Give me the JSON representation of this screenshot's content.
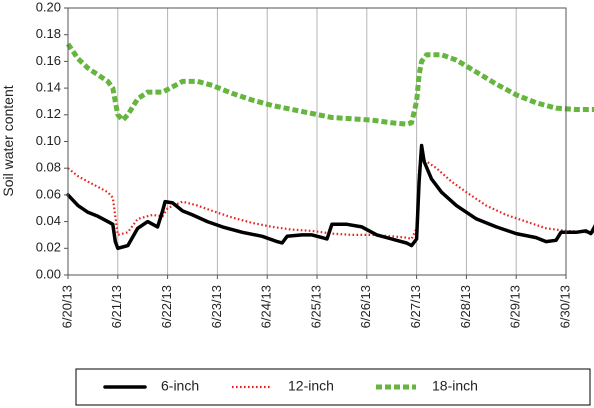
{
  "chart_data": {
    "type": "line",
    "title": "",
    "xlabel": "",
    "ylabel": "Soil water content",
    "ylim": [
      0.0,
      0.2
    ],
    "xlim": [
      "6/20/13",
      "6/30/13"
    ],
    "yticks": [
      "0.00",
      "0.02",
      "0.04",
      "0.06",
      "0.08",
      "0.10",
      "0.12",
      "0.14",
      "0.16",
      "0.18",
      "0.20"
    ],
    "xticks": [
      "6/20/13",
      "6/21/13",
      "6/22/13",
      "6/23/13",
      "6/24/13",
      "6/25/13",
      "6/26/13",
      "6/27/13",
      "6/28/13",
      "6/29/13",
      "6/30/13"
    ],
    "grid": "vertical",
    "legend_position": "bottom",
    "series": [
      {
        "name": "6-inch",
        "color": "#000000",
        "style": "solid",
        "points": [
          [
            "6/20/13 00:00",
            0.06
          ],
          [
            "6/20/13 04:48",
            0.052
          ],
          [
            "6/20/13 09:36",
            0.047
          ],
          [
            "6/20/13 14:24",
            0.044
          ],
          [
            "6/20/13 19:12",
            0.04
          ],
          [
            "6/20/13 21:36",
            0.038
          ],
          [
            "6/20/13 22:48",
            0.025
          ],
          [
            "6/21/13 00:00",
            0.02
          ],
          [
            "6/21/13 04:48",
            0.022
          ],
          [
            "6/21/13 09:36",
            0.035
          ],
          [
            "6/21/13 14:24",
            0.04
          ],
          [
            "6/21/13 19:12",
            0.036
          ],
          [
            "6/21/13 21:36",
            0.048
          ],
          [
            "6/21/13 22:48",
            0.055
          ],
          [
            "6/22/13 02:24",
            0.054
          ],
          [
            "6/22/13 07:12",
            0.048
          ],
          [
            "6/22/13 12:00",
            0.045
          ],
          [
            "6/22/13 19:12",
            0.04
          ],
          [
            "6/23/13 02:24",
            0.036
          ],
          [
            "6/23/13 12:00",
            0.032
          ],
          [
            "6/23/13 21:36",
            0.029
          ],
          [
            "6/24/13 04:48",
            0.025
          ],
          [
            "6/24/13 07:12",
            0.024
          ],
          [
            "6/24/13 09:36",
            0.029
          ],
          [
            "6/24/13 16:48",
            0.03
          ],
          [
            "6/24/13 21:36",
            0.03
          ],
          [
            "6/25/13 02:24",
            0.028
          ],
          [
            "6/25/13 04:48",
            0.027
          ],
          [
            "6/25/13 07:12",
            0.038
          ],
          [
            "6/25/13 14:24",
            0.038
          ],
          [
            "6/25/13 21:36",
            0.036
          ],
          [
            "6/26/13 04:48",
            0.03
          ],
          [
            "6/26/13 12:00",
            0.027
          ],
          [
            "6/26/13 19:12",
            0.024
          ],
          [
            "6/26/13 21:36",
            0.022
          ],
          [
            "6/27/13 00:00",
            0.027
          ],
          [
            "6/27/13 01:12",
            0.07
          ],
          [
            "6/27/13 02:24",
            0.097
          ],
          [
            "6/27/13 03:36",
            0.085
          ],
          [
            "6/27/13 07:12",
            0.072
          ],
          [
            "6/27/13 12:00",
            0.062
          ],
          [
            "6/27/13 19:12",
            0.052
          ],
          [
            "6/28/13 04:48",
            0.042
          ],
          [
            "6/28/13 14:24",
            0.036
          ],
          [
            "6/29/13 00:00",
            0.031
          ],
          [
            "6/29/13 09:36",
            0.028
          ],
          [
            "6/29/13 14:24",
            0.025
          ],
          [
            "6/29/13 19:12",
            0.026
          ],
          [
            "6/29/13 21:36",
            0.032
          ],
          [
            "6/30/13 04:48",
            0.032
          ],
          [
            "6/30/13 09:36",
            0.033
          ],
          [
            "6/30/13 12:00",
            0.031
          ],
          [
            "6/30/13 14:24",
            0.038
          ],
          [
            "6/30/13 21:36",
            0.038
          ],
          [
            "6/30/13 23:02",
            0.037
          ]
        ]
      },
      {
        "name": "12-inch",
        "color": "#e8231e",
        "style": "dotted",
        "points": [
          [
            "6/20/13 00:00",
            0.08
          ],
          [
            "6/20/13 04:48",
            0.074
          ],
          [
            "6/20/13 09:36",
            0.07
          ],
          [
            "6/20/13 14:24",
            0.066
          ],
          [
            "6/20/13 19:12",
            0.062
          ],
          [
            "6/20/13 21:36",
            0.058
          ],
          [
            "6/21/13 00:00",
            0.03
          ],
          [
            "6/21/13 04:48",
            0.032
          ],
          [
            "6/21/13 09:36",
            0.042
          ],
          [
            "6/21/13 16:48",
            0.045
          ],
          [
            "6/21/13 21:36",
            0.044
          ],
          [
            "6/22/13 00:00",
            0.05
          ],
          [
            "6/22/13 07:12",
            0.055
          ],
          [
            "6/22/13 14:24",
            0.052
          ],
          [
            "6/22/13 21:36",
            0.048
          ],
          [
            "6/23/13 07:12",
            0.043
          ],
          [
            "6/23/13 16:48",
            0.039
          ],
          [
            "6/24/13 02:24",
            0.036
          ],
          [
            "6/24/13 12:00",
            0.034
          ],
          [
            "6/24/13 21:36",
            0.033
          ],
          [
            "6/25/13 07:12",
            0.031
          ],
          [
            "6/25/13 16:48",
            0.03
          ],
          [
            "6/26/13 02:24",
            0.03
          ],
          [
            "6/26/13 12:00",
            0.029
          ],
          [
            "6/26/13 19:12",
            0.028
          ],
          [
            "6/26/13 21:36",
            0.027
          ],
          [
            "6/27/13 00:00",
            0.035
          ],
          [
            "6/27/13 01:12",
            0.08
          ],
          [
            "6/27/13 02:24",
            0.087
          ],
          [
            "6/27/13 04:48",
            0.085
          ],
          [
            "6/27/13 09:36",
            0.08
          ],
          [
            "6/27/13 16:48",
            0.07
          ],
          [
            "6/28/13 00:00",
            0.062
          ],
          [
            "6/28/13 09:36",
            0.052
          ],
          [
            "6/28/13 19:12",
            0.045
          ],
          [
            "6/29/13 04:48",
            0.04
          ],
          [
            "6/29/13 14:24",
            0.035
          ],
          [
            "6/30/13 00:00",
            0.033
          ],
          [
            "6/30/13 09:36",
            0.032
          ],
          [
            "6/30/13 23:02",
            0.032
          ]
        ]
      },
      {
        "name": "18-inch",
        "color": "#66b53f",
        "style": "dashed",
        "points": [
          [
            "6/20/13 00:00",
            0.173
          ],
          [
            "6/20/13 04:48",
            0.162
          ],
          [
            "6/20/13 09:36",
            0.155
          ],
          [
            "6/20/13 14:24",
            0.15
          ],
          [
            "6/20/13 19:12",
            0.145
          ],
          [
            "6/20/13 21:36",
            0.14
          ],
          [
            "6/21/13 00:00",
            0.12
          ],
          [
            "6/21/13 02:24",
            0.116
          ],
          [
            "6/21/13 04:48",
            0.12
          ],
          [
            "6/21/13 09:36",
            0.132
          ],
          [
            "6/21/13 14:24",
            0.137
          ],
          [
            "6/21/13 21:36",
            0.137
          ],
          [
            "6/22/13 02:24",
            0.141
          ],
          [
            "6/22/13 07:12",
            0.145
          ],
          [
            "6/22/13 14:24",
            0.145
          ],
          [
            "6/22/13 21:36",
            0.142
          ],
          [
            "6/23/13 07:12",
            0.136
          ],
          [
            "6/23/13 16:48",
            0.131
          ],
          [
            "6/24/13 02:24",
            0.127
          ],
          [
            "6/24/13 12:00",
            0.124
          ],
          [
            "6/24/13 21:36",
            0.121
          ],
          [
            "6/25/13 07:12",
            0.118
          ],
          [
            "6/25/13 16:48",
            0.117
          ],
          [
            "6/26/13 02:24",
            0.116
          ],
          [
            "6/26/13 12:00",
            0.114
          ],
          [
            "6/26/13 19:12",
            0.113
          ],
          [
            "6/26/13 21:36",
            0.114
          ],
          [
            "6/27/13 00:00",
            0.13
          ],
          [
            "6/27/13 01:12",
            0.15
          ],
          [
            "6/27/13 02:24",
            0.16
          ],
          [
            "6/27/13 04:48",
            0.165
          ],
          [
            "6/27/13 12:00",
            0.165
          ],
          [
            "6/27/13 19:12",
            0.161
          ],
          [
            "6/28/13 04:48",
            0.152
          ],
          [
            "6/28/13 14:24",
            0.143
          ],
          [
            "6/29/13 00:00",
            0.135
          ],
          [
            "6/29/13 09:36",
            0.129
          ],
          [
            "6/29/13 19:12",
            0.125
          ],
          [
            "6/30/13 04:48",
            0.124
          ],
          [
            "6/30/13 14:24",
            0.124
          ],
          [
            "6/30/13 23:02",
            0.12
          ]
        ]
      }
    ]
  }
}
